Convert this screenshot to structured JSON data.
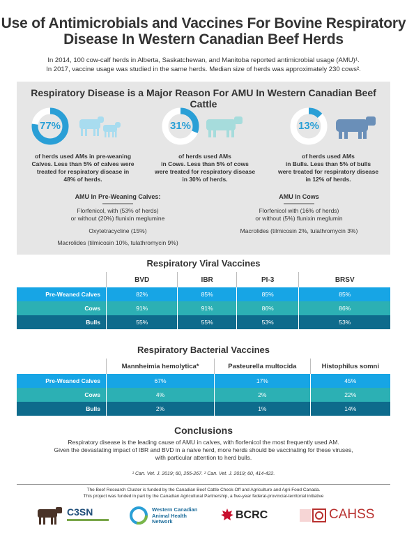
{
  "title_line1": "Use of Antimicrobials and Vaccines For Bovine Respiratory",
  "title_line2": "Disease In Western Canadian Beef Herds",
  "intro_line1": "In 2014, 100 cow-calf herds in Alberta, Saskatchewan, and Manitoba reported antimicrobial usage (AMU)¹.",
  "intro_line2": "In 2017, vaccine usage was studied in the same herds. Median size of herds was approximately 230 cows².",
  "panel_title": "Respiratory Disease is a Major Reason For AMU In Western Canadian Beef Cattle",
  "stats": [
    {
      "pct": "77%",
      "value": 77,
      "lines": [
        "of herds used AMs in pre-weaning",
        "Calves. Less than 5% of calves were",
        "treated for respiratory disease in",
        "48% of herds."
      ]
    },
    {
      "pct": "31%",
      "value": 31,
      "lines": [
        "of herds used AMs",
        "in Cows. Less than 5% of cows",
        "were treated for respiratory disease",
        "in 30% of herds."
      ]
    },
    {
      "pct": "13%",
      "value": 13,
      "lines": [
        "of herds used AMs",
        "in Bulls. Less than 5% of bulls",
        "were treated for respiratory disease",
        "in 12% of herds."
      ]
    }
  ],
  "amu_calves": {
    "heading": "AMU In Pre-Weaning Calves:",
    "items": [
      "Florfenicol, with (53% of herds)",
      "or without (20%) flunixin meglumine",
      "Oxytetracycline (15%)",
      "Macrolides (tilmicosin 10%, tulathromycin 9%)"
    ]
  },
  "amu_cows": {
    "heading": "AMU In Cows",
    "items": [
      "Florfenicol with (16% of herds)",
      "or without (5%) flunixin meglumin",
      "Macrolides (tilmicosin 2%, tulathromycin 3%)"
    ]
  },
  "viral": {
    "title": "Respiratory Viral Vaccines",
    "headers": [
      "BVD",
      "IBR",
      "PI-3",
      "BRSV"
    ],
    "rows": [
      {
        "label": "Pre-Weaned Calves",
        "values": [
          "82%",
          "85%",
          "85%",
          "85%"
        ]
      },
      {
        "label": "Cows",
        "values": [
          "91%",
          "91%",
          "86%",
          "86%"
        ]
      },
      {
        "label": "Bulls",
        "values": [
          "55%",
          "55%",
          "53%",
          "53%"
        ]
      }
    ]
  },
  "bacterial": {
    "title": "Respiratory Bacterial Vaccines",
    "headers": [
      "Mannheimia hemolytica*",
      "Pasteurella multocida",
      "Histophilus somni"
    ],
    "rows": [
      {
        "label": "Pre-Weaned Calves",
        "values": [
          "67%",
          "17%",
          "45%"
        ]
      },
      {
        "label": "Cows",
        "values": [
          "4%",
          "2%",
          "22%"
        ]
      },
      {
        "label": "Bulls",
        "values": [
          "2%",
          "1%",
          "14%"
        ]
      }
    ]
  },
  "conclusions": {
    "title": "Conclusions",
    "line1": "Respiratory disease is the leading cause of AMU in calves, with florfenicol the most frequently used AM.",
    "line2": "Given the devastating impact of IBR and BVD in a naive herd, more herds should be vaccinating for these viruses,",
    "line3": "with particular attention to herd bulls."
  },
  "refs": "¹ Can. Vet. J. 2019; 60, 255-267.  ² Can. Vet. J. 2019; 60, 414-422.",
  "funding_line1": "The Beef Research Cluster is funded by the Canadian Beef Cattle Check-Off and Agriculture and Agri-Food Canada.",
  "funding_line2": "This project was funded in part by the Canadian Agricultural Partnership, a five-year federal-provincial-territorial initiative",
  "logos": {
    "c3sn": "C3SN",
    "wcahn": "Western Canadian Animal Health Network",
    "bcrc": "BCRC",
    "cahss": "CAHSS"
  },
  "colors": {
    "accent": "#2a9fd6",
    "row1": "#17a5e5",
    "row2": "#2cb0b4",
    "row3": "#0e6b8c",
    "calf_icon": "#a8dcef",
    "cow_icon": "#a6dcdc",
    "bull_icon": "#6a8fb8"
  }
}
